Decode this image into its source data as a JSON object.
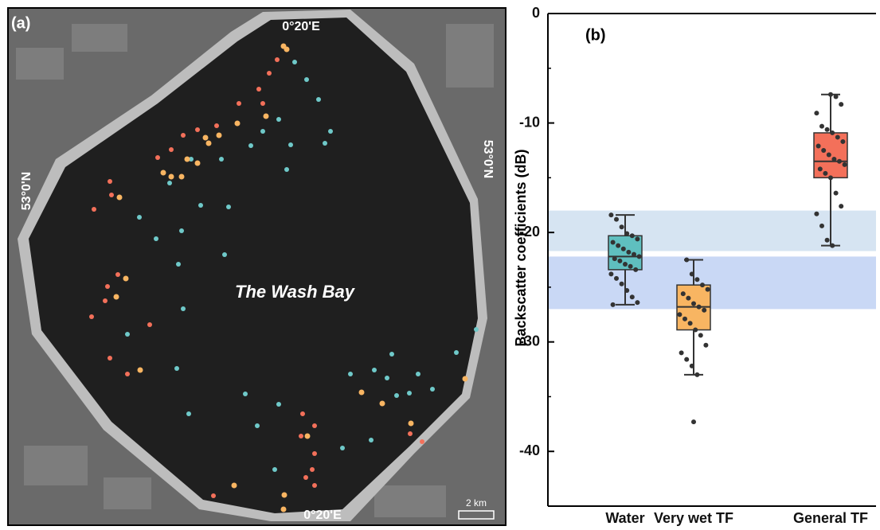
{
  "map": {
    "label": "(a)",
    "top_lon": "0°20'E",
    "bottom_lon": "0°20'E",
    "left_lat": "53°0'N",
    "right_lat": "53°0'N",
    "place": "The Wash Bay",
    "scale": "2 km"
  },
  "chart_data": {
    "type": "box",
    "title": "(b)",
    "y_label": "Backscatter coefficients (dB)",
    "categories": [
      "Water",
      "Very wet TF",
      "General TF"
    ],
    "ylim": [
      -45,
      0
    ],
    "yticks": [
      0,
      -10,
      -20,
      -30,
      -40
    ],
    "minor_yticks": [
      -5,
      -15,
      -25,
      -35
    ],
    "bands": [
      {
        "from": -18,
        "to": -21.7,
        "color": "#d6e4f2"
      },
      {
        "from": -22.2,
        "to": -27,
        "color": "#c9d8f5"
      }
    ],
    "boxes": [
      {
        "color": "#5fbfbf",
        "whisker_high": -18.4,
        "q3": -20.3,
        "median": -22.2,
        "q1": -23.4,
        "whisker_low": -26.6,
        "outliers": [],
        "points": [
          -18.4,
          -18.8,
          -19.5,
          -20.1,
          -20.3,
          -20.6,
          -20.9,
          -21.2,
          -21.5,
          -21.8,
          -22.0,
          -22.2,
          -22.4,
          -22.6,
          -22.9,
          -23.1,
          -23.4,
          -23.8,
          -24.2,
          -24.7,
          -25.3,
          -25.9,
          -26.4,
          -26.6
        ]
      },
      {
        "color": "#f8b562",
        "whisker_high": -22.5,
        "q3": -24.8,
        "median": -26.8,
        "q1": -28.9,
        "whisker_low": -33.0,
        "outliers": [
          -37.3
        ],
        "points": [
          -22.5,
          -23.8,
          -24.3,
          -24.8,
          -25.2,
          -25.6,
          -26.0,
          -26.5,
          -26.8,
          -27.1,
          -27.5,
          -27.9,
          -28.3,
          -28.9,
          -29.4,
          -30.3,
          -31.0,
          -31.6,
          -32.2,
          -33.0
        ]
      },
      {
        "color": "#f3705a",
        "whisker_high": -7.4,
        "q3": -10.9,
        "median": -13.5,
        "q1": -15.0,
        "whisker_low": -21.2,
        "outliers": [],
        "points": [
          -7.4,
          -7.6,
          -8.3,
          -9.1,
          -10.3,
          -10.6,
          -10.9,
          -11.3,
          -11.7,
          -12.1,
          -12.5,
          -12.9,
          -13.3,
          -13.5,
          -13.8,
          -14.2,
          -14.6,
          -15.0,
          -16.4,
          -17.6,
          -18.3,
          -19.4,
          -20.7,
          -21.2
        ]
      }
    ]
  }
}
